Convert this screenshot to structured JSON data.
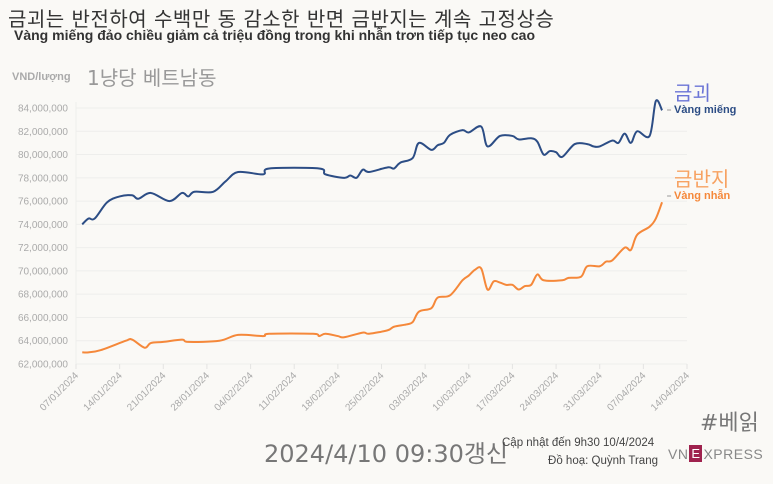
{
  "title": "금괴는 반전하여 수백만 동 감소한 반면 금반지는 계속 고정상승",
  "subtitle": "Vàng miếng đảo chiều giảm cả triệu đồng trong khi nhẫn trơn tiếp tục neo cao",
  "unit_label": "VND/lượng",
  "unit_label_ko": "1냥당 베트남동",
  "hashtag": "#베읽",
  "updated_ko": "2024/4/10 09:30갱신",
  "updated": "Cập nhật đến 9h30 10/4/2024",
  "credit": "Đồ hoạ: Quỳnh Trang",
  "logo": {
    "left": "VN",
    "mark": "E",
    "right": "XPRESS",
    "color": "#9f224e"
  },
  "chart_data": {
    "type": "line",
    "title": "",
    "xlabel": "",
    "ylabel": "VND/lượng",
    "xlim": [
      "2024-01-07",
      "2024-04-14"
    ],
    "ylim": [
      62000000,
      84000000
    ],
    "grid": true,
    "legend": "right (inline labels at line ends)",
    "x_ticks": [
      "07/01/2024",
      "14/01/2024",
      "21/01/2024",
      "28/01/2024",
      "04/02/2024",
      "11/02/2024",
      "18/02/2024",
      "25/02/2024",
      "03/03/2024",
      "10/03/2024",
      "17/03/2024",
      "24/03/2024",
      "31/03/2024",
      "07/04/2024",
      "14/04/2024"
    ],
    "y_ticks": [
      "62,000,000",
      "64,000,000",
      "66,000,000",
      "68,000,000",
      "70,000,000",
      "72,000,000",
      "74,000,000",
      "76,000,000",
      "78,000,000",
      "80,000,000",
      "82,000,000",
      "84,000,000"
    ],
    "y_tick_values": [
      62000000,
      64000000,
      66000000,
      68000000,
      70000000,
      72000000,
      74000000,
      76000000,
      78000000,
      80000000,
      82000000,
      84000000
    ],
    "series": [
      {
        "name": "Vàng miếng",
        "name_ko": "금괴",
        "color": "#2c4d85",
        "label_ko_color": "#6b74d6",
        "points": [
          [
            "2024-01-08",
            74.0
          ],
          [
            "2024-01-09",
            74.5
          ],
          [
            "2024-01-10",
            74.5
          ],
          [
            "2024-01-12",
            75.9
          ],
          [
            "2024-01-14",
            76.4
          ],
          [
            "2024-01-16",
            76.5
          ],
          [
            "2024-01-17",
            76.2
          ],
          [
            "2024-01-19",
            76.7
          ],
          [
            "2024-01-22",
            76.0
          ],
          [
            "2024-01-24",
            76.7
          ],
          [
            "2024-01-25",
            76.4
          ],
          [
            "2024-01-26",
            76.8
          ],
          [
            "2024-01-29",
            76.8
          ],
          [
            "2024-01-31",
            77.7
          ],
          [
            "2024-02-02",
            78.5
          ],
          [
            "2024-02-06",
            78.3
          ],
          [
            "2024-02-07",
            78.8
          ],
          [
            "2024-02-15",
            78.8
          ],
          [
            "2024-02-16",
            78.3
          ],
          [
            "2024-02-19",
            78.0
          ],
          [
            "2024-02-20",
            78.2
          ],
          [
            "2024-02-21",
            78.0
          ],
          [
            "2024-02-22",
            78.7
          ],
          [
            "2024-02-23",
            78.5
          ],
          [
            "2024-02-26",
            78.9
          ],
          [
            "2024-02-27",
            78.8
          ],
          [
            "2024-02-28",
            79.3
          ],
          [
            "2024-03-01",
            79.7
          ],
          [
            "2024-03-02",
            81.0
          ],
          [
            "2024-03-04",
            80.4
          ],
          [
            "2024-03-05",
            80.8
          ],
          [
            "2024-03-06",
            81.0
          ],
          [
            "2024-03-07",
            81.7
          ],
          [
            "2024-03-09",
            82.1
          ],
          [
            "2024-03-10",
            81.9
          ],
          [
            "2024-03-12",
            82.4
          ],
          [
            "2024-03-13",
            80.7
          ],
          [
            "2024-03-15",
            81.6
          ],
          [
            "2024-03-17",
            81.6
          ],
          [
            "2024-03-18",
            81.3
          ],
          [
            "2024-03-20",
            81.4
          ],
          [
            "2024-03-21",
            81.1
          ],
          [
            "2024-03-22",
            80.0
          ],
          [
            "2024-03-23",
            80.3
          ],
          [
            "2024-03-24",
            80.2
          ],
          [
            "2024-03-25",
            79.8
          ],
          [
            "2024-03-27",
            80.9
          ],
          [
            "2024-03-29",
            80.9
          ],
          [
            "2024-03-30",
            80.7
          ],
          [
            "2024-03-31",
            80.7
          ],
          [
            "2024-04-02",
            81.2
          ],
          [
            "2024-04-03",
            81.0
          ],
          [
            "2024-04-04",
            81.8
          ],
          [
            "2024-04-05",
            81.0
          ],
          [
            "2024-04-06",
            82.0
          ],
          [
            "2024-04-08",
            81.6
          ],
          [
            "2024-04-09",
            84.6
          ],
          [
            "2024-04-10",
            83.8
          ]
        ]
      },
      {
        "name": "Vàng nhẫn",
        "name_ko": "금반지",
        "color": "#f5883a",
        "label_ko_color": "#f7a262",
        "points": [
          [
            "2024-01-08",
            63.0
          ],
          [
            "2024-01-09",
            63.0
          ],
          [
            "2024-01-11",
            63.2
          ],
          [
            "2024-01-15",
            64.0
          ],
          [
            "2024-01-16",
            64.1
          ],
          [
            "2024-01-18",
            63.4
          ],
          [
            "2024-01-19",
            63.8
          ],
          [
            "2024-01-21",
            63.9
          ],
          [
            "2024-01-24",
            64.1
          ],
          [
            "2024-01-25",
            63.9
          ],
          [
            "2024-01-30",
            64.0
          ],
          [
            "2024-02-02",
            64.5
          ],
          [
            "2024-02-06",
            64.4
          ],
          [
            "2024-02-07",
            64.6
          ],
          [
            "2024-02-14",
            64.6
          ],
          [
            "2024-02-15",
            64.4
          ],
          [
            "2024-02-16",
            64.6
          ],
          [
            "2024-02-18",
            64.4
          ],
          [
            "2024-02-19",
            64.3
          ],
          [
            "2024-02-22",
            64.7
          ],
          [
            "2024-02-23",
            64.6
          ],
          [
            "2024-02-26",
            64.9
          ],
          [
            "2024-02-27",
            65.2
          ],
          [
            "2024-02-29",
            65.4
          ],
          [
            "2024-03-01",
            65.6
          ],
          [
            "2024-03-02",
            66.5
          ],
          [
            "2024-03-04",
            66.8
          ],
          [
            "2024-03-05",
            67.7
          ],
          [
            "2024-03-07",
            67.9
          ],
          [
            "2024-03-09",
            69.2
          ],
          [
            "2024-03-10",
            69.6
          ],
          [
            "2024-03-11",
            70.1
          ],
          [
            "2024-03-12",
            70.2
          ],
          [
            "2024-03-13",
            68.4
          ],
          [
            "2024-03-14",
            69.1
          ],
          [
            "2024-03-15",
            69.0
          ],
          [
            "2024-03-16",
            68.8
          ],
          [
            "2024-03-17",
            68.8
          ],
          [
            "2024-03-18",
            68.4
          ],
          [
            "2024-03-19",
            68.7
          ],
          [
            "2024-03-20",
            68.8
          ],
          [
            "2024-03-21",
            69.7
          ],
          [
            "2024-03-22",
            69.2
          ],
          [
            "2024-03-25",
            69.2
          ],
          [
            "2024-03-26",
            69.4
          ],
          [
            "2024-03-28",
            69.5
          ],
          [
            "2024-03-29",
            70.4
          ],
          [
            "2024-03-31",
            70.4
          ],
          [
            "2024-04-01",
            70.8
          ],
          [
            "2024-04-02",
            70.9
          ],
          [
            "2024-04-04",
            72.0
          ],
          [
            "2024-04-05",
            71.8
          ],
          [
            "2024-04-06",
            73.1
          ],
          [
            "2024-04-08",
            73.8
          ],
          [
            "2024-04-09",
            74.5
          ],
          [
            "2024-04-10",
            75.9
          ]
        ]
      }
    ],
    "value_unit_in_points": "million VND"
  }
}
